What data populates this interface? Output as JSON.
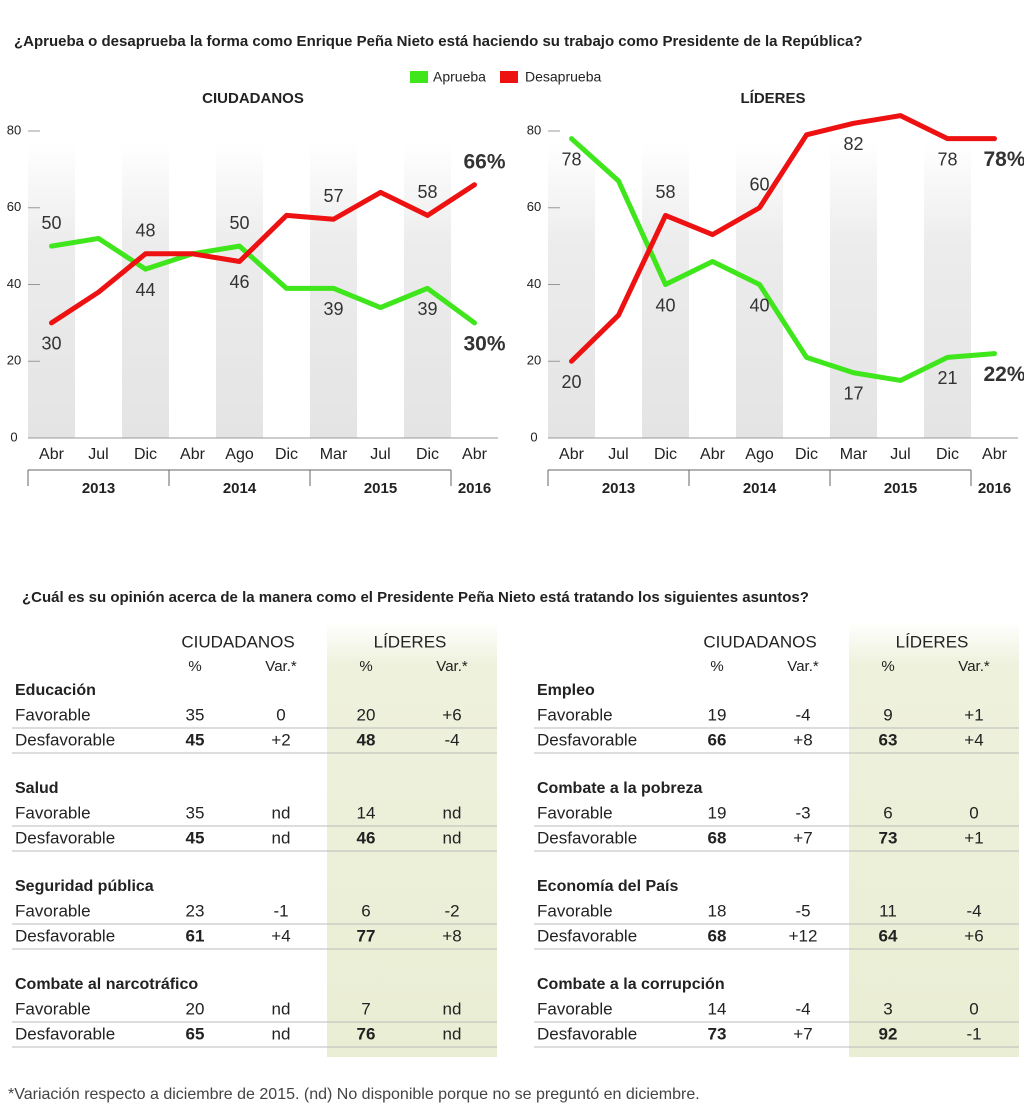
{
  "title": "¿Aprueba o desaprueba la forma como Enrique Peña Nieto está haciendo su trabajo como Presidente de la República?",
  "chart_data": [
    {
      "type": "line",
      "title": "CIUDADANOS",
      "categories": [
        "Abr",
        "Jul",
        "Dic",
        "Abr",
        "Ago",
        "Dic",
        "Mar",
        "Jul",
        "Dic",
        "Abr"
      ],
      "years": [
        "2013",
        null,
        null,
        "2014",
        null,
        null,
        "2015",
        null,
        null,
        "2016"
      ],
      "series": [
        {
          "name": "Aprueba",
          "color": "#3ee61b",
          "values": [
            50,
            52,
            44,
            48,
            50,
            39,
            39,
            34,
            39,
            30
          ],
          "value_labels": [
            "50",
            null,
            "44",
            null,
            "50",
            null,
            "39",
            null,
            "39",
            "30%"
          ]
        },
        {
          "name": "Desaprueba",
          "color": "#ee1111",
          "values": [
            30,
            38,
            48,
            48,
            46,
            58,
            57,
            64,
            58,
            66
          ],
          "value_labels": [
            "30",
            null,
            "48",
            null,
            "46",
            null,
            "57",
            null,
            "58",
            "66%"
          ]
        }
      ],
      "ylim": [
        0,
        80
      ],
      "yticks": [
        0,
        20,
        40,
        60,
        80
      ]
    },
    {
      "type": "line",
      "title": "LÍDERES",
      "categories": [
        "Abr",
        "Jul",
        "Dic",
        "Abr",
        "Ago",
        "Dic",
        "Mar",
        "Jul",
        "Dic",
        "Abr"
      ],
      "years": [
        "2013",
        null,
        null,
        "2014",
        null,
        null,
        "2015",
        null,
        null,
        "2016"
      ],
      "series": [
        {
          "name": "Aprueba",
          "color": "#3ee61b",
          "values": [
            78,
            67,
            40,
            46,
            40,
            21,
            17,
            15,
            21,
            22
          ],
          "value_labels": [
            "78",
            null,
            "40",
            null,
            "40",
            null,
            "17",
            null,
            "21",
            "22%"
          ]
        },
        {
          "name": "Desaprueba",
          "color": "#ee1111",
          "values": [
            20,
            32,
            58,
            53,
            60,
            79,
            82,
            84,
            78,
            78
          ],
          "value_labels": [
            "20",
            null,
            "58",
            null,
            "60",
            null,
            "82",
            null,
            "78",
            "78%"
          ]
        }
      ],
      "ylim": [
        0,
        80
      ],
      "yticks": [
        0,
        20,
        40,
        60,
        80
      ]
    }
  ],
  "question": "¿Cuál es su opinión acerca de la manera como el Presidente Peña Nieto está tratando los siguientes asuntos?",
  "table": {
    "panels": [
      {
        "groups": [
          "CIUDADANOS",
          "LÍDERES"
        ],
        "columns": [
          "%",
          "Var.*",
          "%",
          "Var.*"
        ],
        "sections": [
          {
            "topic": "Educación",
            "rows": [
              [
                "Favorable",
                "35",
                "0",
                "20",
                "+6"
              ],
              [
                "Desfavorable",
                "45",
                "+2",
                "48",
                "-4"
              ]
            ]
          },
          {
            "topic": "Salud",
            "rows": [
              [
                "Favorable",
                "35",
                "nd",
                "14",
                "nd"
              ],
              [
                "Desfavorable",
                "45",
                "nd",
                "46",
                "nd"
              ]
            ]
          },
          {
            "topic": "Seguridad pública",
            "rows": [
              [
                "Favorable",
                "23",
                "-1",
                "6",
                "-2"
              ],
              [
                "Desfavorable",
                "61",
                "+4",
                "77",
                "+8"
              ]
            ]
          },
          {
            "topic": "Combate al narcotráfico",
            "rows": [
              [
                "Favorable",
                "20",
                "nd",
                "7",
                "nd"
              ],
              [
                "Desfavorable",
                "65",
                "nd",
                "76",
                "nd"
              ]
            ]
          }
        ]
      },
      {
        "groups": [
          "CIUDADANOS",
          "LÍDERES"
        ],
        "columns": [
          "%",
          "Var.*",
          "%",
          "Var.*"
        ],
        "sections": [
          {
            "topic": "Empleo",
            "rows": [
              [
                "Favorable",
                "19",
                "-4",
                "9",
                "+1"
              ],
              [
                "Desfavorable",
                "66",
                "+8",
                "63",
                "+4"
              ]
            ]
          },
          {
            "topic": "Combate a la pobreza",
            "rows": [
              [
                "Favorable",
                "19",
                "-3",
                "6",
                "0"
              ],
              [
                "Desfavorable",
                "68",
                "+7",
                "73",
                "+1"
              ]
            ]
          },
          {
            "topic": "Economía del País",
            "rows": [
              [
                "Favorable",
                "18",
                "-5",
                "11",
                "-4"
              ],
              [
                "Desfavorable",
                "68",
                "+12",
                "64",
                "+6"
              ]
            ]
          },
          {
            "topic": "Combate a la corrupción",
            "rows": [
              [
                "Favorable",
                "14",
                "-4",
                "3",
                "0"
              ],
              [
                "Desfavorable",
                "73",
                "+7",
                "92",
                "-1"
              ]
            ]
          }
        ]
      }
    ]
  },
  "footnote": "*Variación respecto a diciembre de 2015. (nd) No disponible porque no se preguntó en diciembre."
}
